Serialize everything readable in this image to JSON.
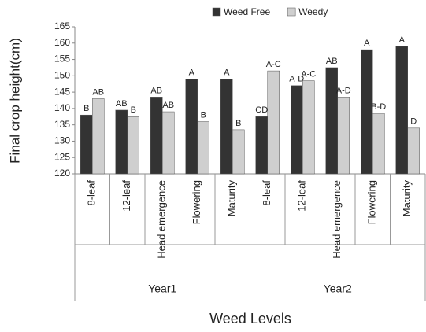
{
  "chart_data": {
    "type": "bar",
    "y_label": "Final crop height(cm)",
    "x_label": "Weed Levels",
    "groups": [
      "Year1",
      "Year2"
    ],
    "categories": [
      "8-leaf",
      "12-leaf",
      "Head emergence",
      "Flowering",
      "Maturity",
      "8-leaf",
      "12-leaf",
      "Head emergence",
      "Flowering",
      "Maturity"
    ],
    "series": [
      {
        "name": "Weed Free",
        "color": "#333333",
        "values": [
          138,
          139.5,
          143.5,
          149,
          149,
          137.5,
          147,
          152.5,
          158,
          159
        ],
        "letters": [
          "B",
          "AB",
          "AB",
          "A",
          "A",
          "CD",
          "A-D",
          "AB",
          "A",
          "A"
        ]
      },
      {
        "name": "Weedy",
        "color": "#cfcfcf",
        "values": [
          143,
          137.5,
          139,
          136,
          133.5,
          151.5,
          148.5,
          143.5,
          138.5,
          134
        ],
        "letters": [
          "AB",
          "B",
          "AB",
          "B",
          "B",
          "A-C",
          "A-C",
          "A-D",
          "B-D",
          "D"
        ]
      }
    ],
    "ylim": [
      120,
      165
    ],
    "yticks": [
      120,
      125,
      130,
      135,
      140,
      145,
      150,
      155,
      160,
      165
    ],
    "legend": "top"
  }
}
